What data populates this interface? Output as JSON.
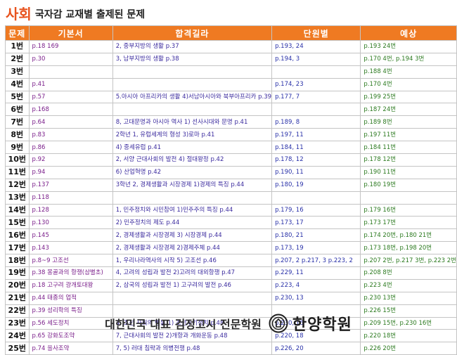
{
  "header": {
    "title_accent": "사회",
    "title_rest": "국자감 교재별 출제된 문제"
  },
  "columns": [
    "문제",
    "기본서",
    "합격길라",
    "단원별",
    "예상"
  ],
  "rows": [
    {
      "num": "1번",
      "c2": "p.18 169",
      "c3": "2, 중부지방의 생활 p.37",
      "c4": "p.193, 24",
      "c5": "p.193 24번"
    },
    {
      "num": "2번",
      "c2": "p.30",
      "c3": "3, 남부지방의 생활 p.38",
      "c4": "p.194, 3",
      "c5": "p.170 4번, p.194 3번"
    },
    {
      "num": "3번",
      "c2": "",
      "c3": "",
      "c4": "",
      "c5": "p.188 4번"
    },
    {
      "num": "4번",
      "c2": "p.41",
      "c3": "",
      "c4": "p.174, 23",
      "c5": "p.170 4번"
    },
    {
      "num": "5번",
      "c2": "p.57",
      "c3": "5.아시아 아프리카의 생활 4)서남아시아와 북부아프리카 p.39",
      "c4": "p.177, 7",
      "c5": "p.199 25번"
    },
    {
      "num": "6번",
      "c2": "p.168",
      "c3": "",
      "c4": "",
      "c5": "p.187 24번"
    },
    {
      "num": "7번",
      "c2": "p.64",
      "c3": "8, 고대문명과 아시아 역사 1) 선사시대와 문명 p.41",
      "c4": "p.189, 8",
      "c5": "p.189 8번"
    },
    {
      "num": "8번",
      "c2": "p.83",
      "c3": "2학년 1, 유럽세계의 형성 3)로마 p.41",
      "c4": "p.197, 11",
      "c5": "p.197 11번"
    },
    {
      "num": "9번",
      "c2": "p.86",
      "c3": "4) 중세유럽 p.41",
      "c4": "p.184, 11",
      "c5": "p.184 11번"
    },
    {
      "num": "10번",
      "c2": "p.92",
      "c3": "2, 서양 근대사회의 발전 4) 절대왕정 p.42",
      "c4": "p.178, 12",
      "c5": "p.178 12번"
    },
    {
      "num": "11번",
      "c2": "p.94",
      "c3": "6) 산업혁명 p.42",
      "c4": "p.190, 11",
      "c5": "p.190 11번"
    },
    {
      "num": "12번",
      "c2": "p.137",
      "c3": "3학년 2, 경제생활과 시장경제 1)경제의 특징 p.44",
      "c4": "p.180, 19",
      "c5": "p.180 19번"
    },
    {
      "num": "13번",
      "c2": "p.118",
      "c3": "",
      "c4": "",
      "c5": ""
    },
    {
      "num": "14번",
      "c2": "p.128",
      "c3": "1, 민주정치와 시민참여 1)민주주의 특징 p.44",
      "c4": "p.179, 16",
      "c5": "p.179 16번"
    },
    {
      "num": "15번",
      "c2": "p.130",
      "c3": "2) 민주정치의 제도 p.44",
      "c4": "p.173, 17",
      "c5": "p.173 17번"
    },
    {
      "num": "16번",
      "c2": "p.145",
      "c3": "2, 경제생활과 시장경제 3) 시장경제 p.44",
      "c4": "p.180, 21",
      "c5": "p.174 20번, p.180 21번"
    },
    {
      "num": "17번",
      "c2": "p.143",
      "c3": "2, 경제생활과 시장경제 2)경제주체 p.44",
      "c4": "p.173, 19",
      "c5": "p.173 18번, p.198 20번"
    },
    {
      "num": "18번",
      "c2": "p.8~9 고조선",
      "c3": "1, 우리나라역사의 시작 5) 고조선 p.46",
      "c4": "p.207, 2 p.217, 3 p.223, 2",
      "c5": "p.207 2번, p.217 3번, p.223 2번"
    },
    {
      "num": "19번",
      "c2": "p.38 몽골과의 항쟁(삼별초)",
      "c3": "4, 고려의 성립과 발전 2)고려의 대외항쟁 p.47",
      "c4": "p.229, 11",
      "c5": "p.208 8번"
    },
    {
      "num": "20번",
      "c2": "p.18 고구려 광개토대왕",
      "c3": "2, 삼국의 성립과 발전 1) 고구려의 발전 p.46",
      "c4": "p.223, 4",
      "c5": "p.223 4번"
    },
    {
      "num": "21번",
      "c2": "p.44 태종의 업적",
      "c3": "",
      "c4": "p.230, 13",
      "c5": "p.230 13번"
    },
    {
      "num": "22번",
      "c2": "p.39 성리학의 특징",
      "c3": "",
      "c4": "",
      "c5": "p.226 15번"
    },
    {
      "num": "23번",
      "c2": "p.56 세도정치",
      "c3": "4, 조선 사회의 변동 1) 조선후기정치 p.48",
      "c4": "p.230, 16",
      "c5": "p.209 15번, p.230 16번"
    },
    {
      "num": "24번",
      "c2": "p.65 강화도조약",
      "c3": "7, 근대사회의 발전 2)개항과 개화운동 p.48",
      "c4": "p.220, 18",
      "c5": "p.220 18번"
    },
    {
      "num": "25번",
      "c2": "p.74 을사조약",
      "c3": "7, 5) 러대 침략과 의병전쟁 p.48",
      "c4": "p.226, 20",
      "c5": "p.226 20번"
    }
  ],
  "footer": {
    "text": "대한민국 대표 검정고시 전문학원",
    "brand": "한양학원"
  },
  "colors": {
    "accent": "#e8531e",
    "header_bg": "#ef7a22"
  }
}
